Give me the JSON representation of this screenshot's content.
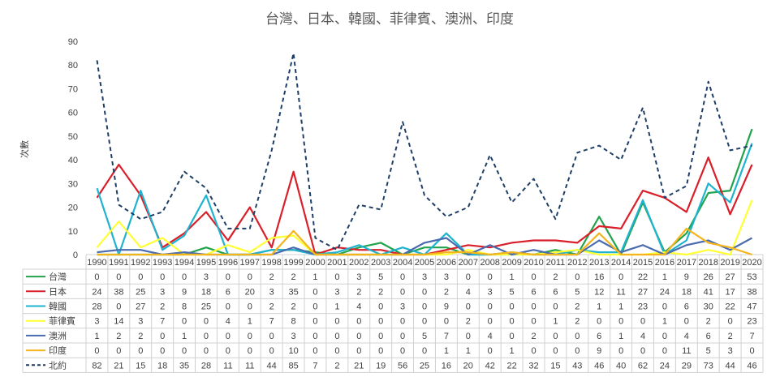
{
  "chart_data": {
    "type": "line",
    "title": "台灣、日本、韓國、菲律賓、澳洲、印度",
    "ylabel": "次數",
    "xlabel": "",
    "ylim": [
      0,
      90
    ],
    "yticks": [
      0,
      10,
      20,
      30,
      40,
      50,
      60,
      70,
      80,
      90
    ],
    "grid": false,
    "legend": "data-table",
    "x": [
      "1990",
      "1991",
      "1992",
      "1993",
      "1994",
      "1995",
      "1996",
      "1997",
      "1998",
      "1999",
      "2000",
      "2001",
      "2002",
      "2003",
      "2004",
      "2005",
      "2006",
      "2007",
      "2008",
      "2009",
      "2010",
      "2011",
      "2012",
      "2013",
      "2014",
      "2015",
      "2016",
      "2017",
      "2018",
      "2019",
      "2020"
    ],
    "series": [
      {
        "name": "台灣",
        "color": "#22a34b",
        "dash": false,
        "values": [
          0,
          0,
          0,
          0,
          0,
          3,
          0,
          0,
          2,
          2,
          1,
          0,
          3,
          5,
          0,
          3,
          3,
          0,
          0,
          1,
          0,
          2,
          0,
          16,
          0,
          22,
          1,
          9,
          26,
          27,
          53
        ]
      },
      {
        "name": "日本",
        "color": "#d9202a",
        "dash": false,
        "values": [
          24,
          38,
          25,
          3,
          9,
          18,
          6,
          20,
          3,
          35,
          0,
          3,
          2,
          2,
          0,
          0,
          2,
          4,
          3,
          5,
          6,
          6,
          5,
          12,
          11,
          27,
          24,
          18,
          41,
          17,
          38
        ]
      },
      {
        "name": "韓國",
        "color": "#1fb3d0",
        "dash": false,
        "values": [
          28,
          0,
          27,
          2,
          8,
          25,
          0,
          0,
          2,
          2,
          0,
          1,
          4,
          0,
          3,
          0,
          9,
          0,
          0,
          0,
          0,
          0,
          2,
          1,
          1,
          23,
          0,
          6,
          30,
          22,
          47
        ]
      },
      {
        "name": "菲律賓",
        "color": "#ffff33",
        "dash": false,
        "values": [
          3,
          14,
          3,
          7,
          0,
          0,
          4,
          1,
          7,
          8,
          0,
          0,
          0,
          0,
          0,
          0,
          0,
          2,
          0,
          0,
          0,
          1,
          2,
          0,
          0,
          0,
          1,
          0,
          2,
          0,
          23
        ]
      },
      {
        "name": "澳洲",
        "color": "#4a6cae",
        "dash": false,
        "values": [
          1,
          2,
          2,
          0,
          1,
          0,
          0,
          0,
          0,
          3,
          0,
          0,
          0,
          0,
          0,
          5,
          7,
          0,
          4,
          0,
          2,
          0,
          0,
          6,
          1,
          4,
          0,
          4,
          6,
          2,
          7
        ]
      },
      {
        "name": "印度",
        "color": "#f4b51c",
        "dash": false,
        "values": [
          0,
          0,
          0,
          0,
          0,
          0,
          0,
          0,
          0,
          10,
          0,
          0,
          0,
          0,
          0,
          0,
          1,
          1,
          0,
          1,
          0,
          0,
          0,
          9,
          0,
          0,
          0,
          11,
          5,
          3,
          0
        ]
      },
      {
        "name": "北約",
        "color": "#1f3e66",
        "dash": true,
        "values": [
          82,
          21,
          15,
          18,
          35,
          28,
          11,
          11,
          44,
          85,
          7,
          2,
          21,
          19,
          56,
          25,
          16,
          20,
          42,
          22,
          32,
          15,
          43,
          46,
          40,
          62,
          24,
          29,
          73,
          44,
          46
        ]
      }
    ]
  }
}
